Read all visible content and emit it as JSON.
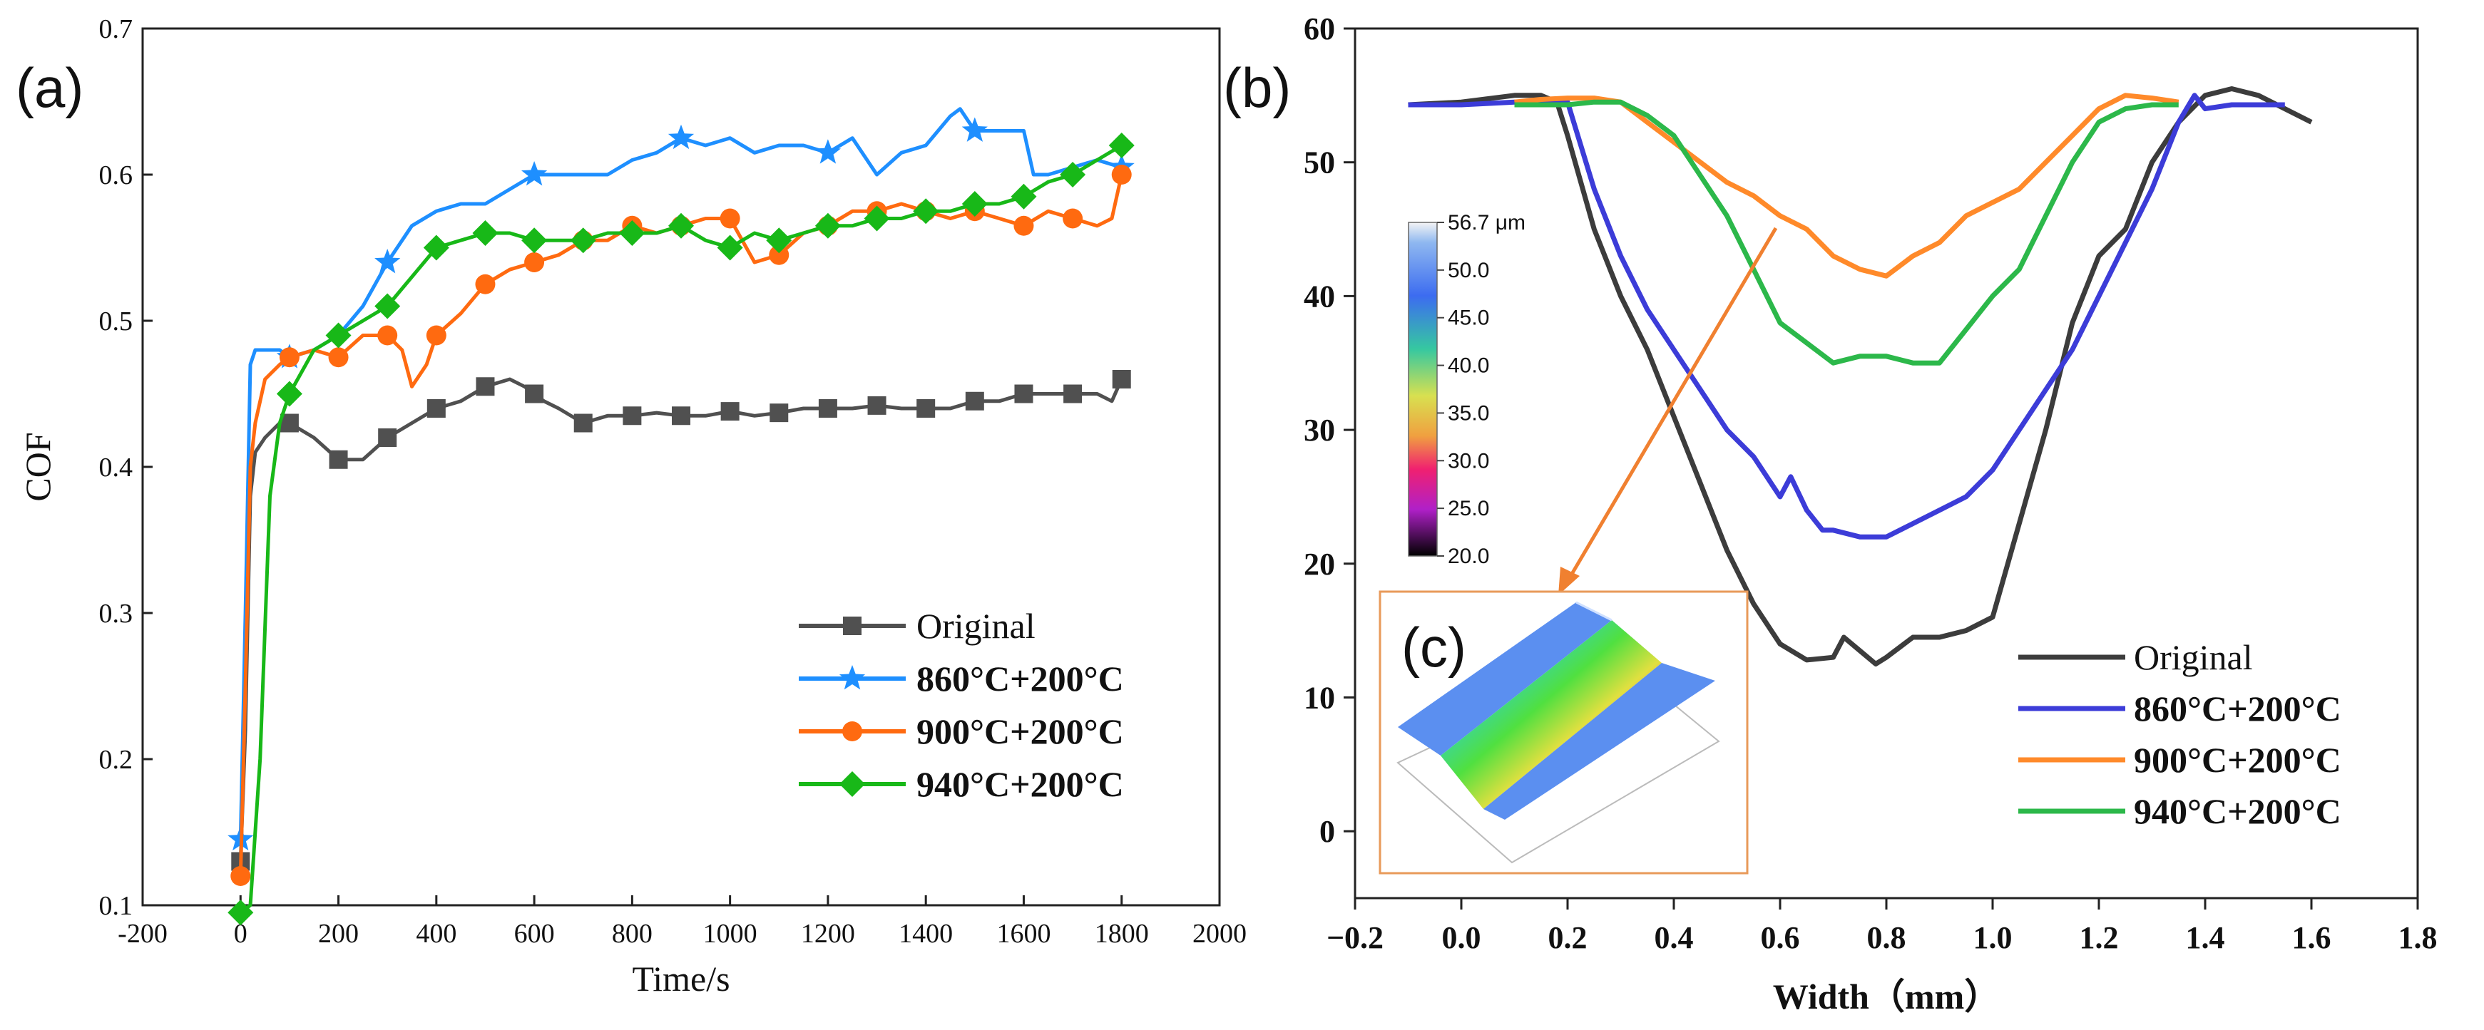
{
  "colors": {
    "original_a": "#505050",
    "series860_a": "#1e8fff",
    "series900_a": "#ff6a10",
    "series940_a": "#18b818",
    "original_b": "#3c3c3c",
    "series860_b": "#3c3cd8",
    "series900_b": "#ff8a2a",
    "series940_b": "#2cb84a",
    "arrow": "#f08030",
    "inset_border": "#e89a5a"
  },
  "chart_data": [
    {
      "panel": "(a)",
      "type": "line",
      "title": "",
      "xlabel": "Time/s",
      "ylabel": "COF",
      "xlim": [
        -200,
        2000
      ],
      "ylim": [
        0.1,
        0.7
      ],
      "xticks": [
        -200,
        0,
        200,
        400,
        600,
        800,
        1000,
        1200,
        1400,
        1600,
        1800,
        2000
      ],
      "xtick_labels": [
        "-200",
        "0",
        "200",
        "400",
        "600",
        "800",
        "1000",
        "1200",
        "1400",
        "1600",
        "1800",
        "2000"
      ],
      "yticks": [
        0.1,
        0.2,
        0.3,
        0.4,
        0.5,
        0.6,
        0.7
      ],
      "ytick_labels": [
        "0.1",
        "0.2",
        "0.3",
        "0.4",
        "0.5",
        "0.6",
        "0.7"
      ],
      "legend_position": "lower-right",
      "series": [
        {
          "name": "Original",
          "marker": "square",
          "x": [
            0,
            10,
            20,
            30,
            50,
            80,
            100,
            150,
            200,
            250,
            300,
            350,
            400,
            450,
            500,
            550,
            580,
            600,
            620,
            650,
            700,
            750,
            800,
            850,
            900,
            950,
            1000,
            1050,
            1100,
            1150,
            1200,
            1250,
            1300,
            1350,
            1400,
            1450,
            1500,
            1550,
            1600,
            1650,
            1700,
            1750,
            1780,
            1800
          ],
          "y": [
            0.13,
            0.22,
            0.38,
            0.41,
            0.42,
            0.43,
            0.43,
            0.42,
            0.405,
            0.405,
            0.42,
            0.43,
            0.44,
            0.445,
            0.455,
            0.46,
            0.455,
            0.45,
            0.445,
            0.44,
            0.43,
            0.435,
            0.435,
            0.437,
            0.435,
            0.435,
            0.438,
            0.435,
            0.437,
            0.44,
            0.44,
            0.44,
            0.442,
            0.44,
            0.44,
            0.44,
            0.445,
            0.445,
            0.45,
            0.45,
            0.45,
            0.45,
            0.445,
            0.46
          ],
          "marker_x": [
            0,
            100,
            200,
            300,
            400,
            500,
            600,
            700,
            800,
            900,
            1000,
            1100,
            1200,
            1300,
            1400,
            1500,
            1600,
            1700,
            1800
          ],
          "marker_y": [
            0.13,
            0.43,
            0.405,
            0.42,
            0.44,
            0.455,
            0.45,
            0.43,
            0.435,
            0.435,
            0.438,
            0.437,
            0.44,
            0.442,
            0.44,
            0.445,
            0.45,
            0.45,
            0.46
          ]
        },
        {
          "name": "860°C+200°C",
          "marker": "star",
          "x": [
            0,
            10,
            20,
            30,
            50,
            80,
            100,
            150,
            200,
            250,
            300,
            350,
            400,
            450,
            500,
            550,
            600,
            650,
            700,
            750,
            800,
            850,
            900,
            950,
            1000,
            1050,
            1100,
            1150,
            1200,
            1250,
            1300,
            1350,
            1400,
            1450,
            1470,
            1500,
            1550,
            1600,
            1620,
            1650,
            1700,
            1750,
            1800
          ],
          "y": [
            0.145,
            0.3,
            0.47,
            0.48,
            0.48,
            0.48,
            0.475,
            0.48,
            0.49,
            0.51,
            0.54,
            0.565,
            0.575,
            0.58,
            0.58,
            0.59,
            0.6,
            0.6,
            0.6,
            0.6,
            0.61,
            0.615,
            0.625,
            0.62,
            0.625,
            0.615,
            0.62,
            0.62,
            0.615,
            0.625,
            0.6,
            0.615,
            0.62,
            0.64,
            0.645,
            0.63,
            0.63,
            0.63,
            0.6,
            0.6,
            0.605,
            0.61,
            0.605
          ],
          "marker_x": [
            0,
            100,
            300,
            600,
            900,
            1200,
            1500,
            1800
          ],
          "marker_y": [
            0.145,
            0.475,
            0.54,
            0.6,
            0.625,
            0.615,
            0.63,
            0.605
          ]
        },
        {
          "name": "900°C+200°C",
          "marker": "circle",
          "x": [
            0,
            10,
            20,
            30,
            50,
            80,
            100,
            150,
            200,
            250,
            300,
            330,
            350,
            380,
            400,
            450,
            500,
            550,
            600,
            650,
            700,
            750,
            800,
            850,
            900,
            950,
            1000,
            1050,
            1100,
            1150,
            1200,
            1250,
            1300,
            1350,
            1400,
            1450,
            1500,
            1550,
            1600,
            1650,
            1700,
            1750,
            1780,
            1800
          ],
          "y": [
            0.12,
            0.25,
            0.4,
            0.43,
            0.46,
            0.47,
            0.475,
            0.48,
            0.475,
            0.49,
            0.49,
            0.48,
            0.455,
            0.47,
            0.49,
            0.505,
            0.525,
            0.535,
            0.54,
            0.545,
            0.555,
            0.555,
            0.565,
            0.56,
            0.565,
            0.57,
            0.57,
            0.54,
            0.545,
            0.56,
            0.565,
            0.575,
            0.575,
            0.58,
            0.575,
            0.57,
            0.575,
            0.57,
            0.565,
            0.575,
            0.57,
            0.565,
            0.57,
            0.6
          ],
          "marker_x": [
            0,
            100,
            200,
            300,
            400,
            500,
            600,
            700,
            800,
            900,
            1000,
            1100,
            1200,
            1300,
            1400,
            1500,
            1600,
            1700,
            1800
          ],
          "marker_y": [
            0.12,
            0.475,
            0.475,
            0.49,
            0.49,
            0.525,
            0.54,
            0.555,
            0.565,
            0.565,
            0.57,
            0.545,
            0.565,
            0.575,
            0.575,
            0.575,
            0.565,
            0.57,
            0.6
          ]
        },
        {
          "name": "940°C+200°C",
          "marker": "diamond",
          "x": [
            0,
            20,
            40,
            60,
            80,
            100,
            150,
            200,
            250,
            300,
            350,
            400,
            450,
            500,
            550,
            600,
            650,
            700,
            750,
            800,
            850,
            900,
            950,
            1000,
            1050,
            1100,
            1150,
            1200,
            1250,
            1300,
            1350,
            1400,
            1450,
            1500,
            1550,
            1600,
            1650,
            1700,
            1750,
            1800
          ],
          "y": [
            0.095,
            0.1,
            0.2,
            0.38,
            0.43,
            0.45,
            0.48,
            0.49,
            0.5,
            0.51,
            0.53,
            0.55,
            0.555,
            0.56,
            0.56,
            0.555,
            0.555,
            0.555,
            0.56,
            0.56,
            0.56,
            0.565,
            0.555,
            0.55,
            0.56,
            0.555,
            0.56,
            0.565,
            0.565,
            0.57,
            0.57,
            0.575,
            0.575,
            0.58,
            0.58,
            0.585,
            0.595,
            0.6,
            0.61,
            0.62
          ],
          "marker_x": [
            0,
            100,
            200,
            300,
            400,
            500,
            600,
            700,
            800,
            900,
            1000,
            1100,
            1200,
            1300,
            1400,
            1500,
            1600,
            1700,
            1800
          ],
          "marker_y": [
            0.095,
            0.45,
            0.49,
            0.51,
            0.55,
            0.56,
            0.555,
            0.555,
            0.56,
            0.565,
            0.55,
            0.555,
            0.565,
            0.57,
            0.575,
            0.58,
            0.585,
            0.6,
            0.62
          ]
        }
      ]
    },
    {
      "panel": "(b)",
      "type": "line",
      "title": "",
      "xlabel": "Width（mm）",
      "ylabel": "",
      "xlim": [
        -0.2,
        1.8
      ],
      "ylim": [
        -5,
        60
      ],
      "xticks": [
        -0.2,
        0.0,
        0.2,
        0.4,
        0.6,
        0.8,
        1.0,
        1.2,
        1.4,
        1.6,
        1.8
      ],
      "xtick_labels": [
        "−0.2",
        "0.0",
        "0.2",
        "0.4",
        "0.6",
        "0.8",
        "1.0",
        "1.2",
        "1.4",
        "1.6",
        "1.8"
      ],
      "yticks": [
        0,
        10,
        20,
        30,
        40,
        50,
        60
      ],
      "ytick_labels": [
        "0",
        "10",
        "20",
        "30",
        "40",
        "50",
        "60"
      ],
      "legend_position": "lower-right",
      "series": [
        {
          "name": "Original",
          "x": [
            -0.1,
            0.0,
            0.1,
            0.15,
            0.18,
            0.2,
            0.25,
            0.3,
            0.35,
            0.4,
            0.45,
            0.5,
            0.55,
            0.6,
            0.65,
            0.7,
            0.72,
            0.75,
            0.78,
            0.8,
            0.85,
            0.9,
            0.95,
            1.0,
            1.05,
            1.1,
            1.15,
            1.2,
            1.25,
            1.3,
            1.35,
            1.4,
            1.45,
            1.5,
            1.55,
            1.6
          ],
          "y": [
            54.3,
            54.5,
            55.0,
            55.0,
            54.5,
            52.0,
            45.0,
            40.0,
            36.0,
            31.0,
            26.0,
            21.0,
            17.0,
            14.0,
            12.8,
            13.0,
            14.5,
            13.5,
            12.5,
            13.0,
            14.5,
            14.5,
            15.0,
            16.0,
            23.0,
            30.0,
            38.0,
            43.0,
            45.0,
            50.0,
            53.0,
            55.0,
            55.5,
            55.0,
            54.0,
            53.0
          ]
        },
        {
          "name": "860°C+200°C",
          "x": [
            -0.1,
            0.0,
            0.1,
            0.2,
            0.25,
            0.3,
            0.35,
            0.4,
            0.45,
            0.5,
            0.55,
            0.6,
            0.62,
            0.65,
            0.68,
            0.7,
            0.75,
            0.8,
            0.85,
            0.9,
            0.95,
            1.0,
            1.05,
            1.1,
            1.15,
            1.2,
            1.25,
            1.3,
            1.35,
            1.38,
            1.4,
            1.45,
            1.5,
            1.55
          ],
          "y": [
            54.3,
            54.3,
            54.5,
            54.5,
            48.0,
            43.0,
            39.0,
            36.0,
            33.0,
            30.0,
            28.0,
            25.0,
            26.5,
            24.0,
            22.5,
            22.5,
            22.0,
            22.0,
            23.0,
            24.0,
            25.0,
            27.0,
            30.0,
            33.0,
            36.0,
            40.0,
            44.0,
            48.0,
            53.0,
            55.0,
            54.0,
            54.3,
            54.3,
            54.3
          ]
        },
        {
          "name": "900°C+200°C",
          "x": [
            0.1,
            0.15,
            0.2,
            0.25,
            0.3,
            0.35,
            0.4,
            0.45,
            0.5,
            0.55,
            0.6,
            0.65,
            0.7,
            0.75,
            0.8,
            0.85,
            0.9,
            0.95,
            1.0,
            1.05,
            1.1,
            1.15,
            1.2,
            1.25,
            1.3,
            1.35
          ],
          "y": [
            54.5,
            54.7,
            54.8,
            54.8,
            54.5,
            53.0,
            51.5,
            50.0,
            48.5,
            47.5,
            46.0,
            45.0,
            43.0,
            42.0,
            41.5,
            43.0,
            44.0,
            46.0,
            47.0,
            48.0,
            50.0,
            52.0,
            54.0,
            55.0,
            54.8,
            54.5
          ]
        },
        {
          "name": "940°C+200°C",
          "x": [
            0.1,
            0.15,
            0.2,
            0.25,
            0.3,
            0.35,
            0.4,
            0.45,
            0.5,
            0.55,
            0.6,
            0.65,
            0.7,
            0.75,
            0.8,
            0.85,
            0.9,
            0.95,
            1.0,
            1.05,
            1.1,
            1.15,
            1.2,
            1.25,
            1.3,
            1.35
          ],
          "y": [
            54.3,
            54.3,
            54.3,
            54.5,
            54.5,
            53.5,
            52.0,
            49.0,
            46.0,
            42.0,
            38.0,
            36.5,
            35.0,
            35.5,
            35.5,
            35.0,
            35.0,
            37.5,
            40.0,
            42.0,
            46.0,
            50.0,
            53.0,
            54.0,
            54.3,
            54.3
          ]
        }
      ],
      "colorbar": {
        "unit_label": "56.7 μm",
        "labels": [
          "56.7 μm",
          "50.0",
          "45.0",
          "40.0",
          "35.0",
          "30.0",
          "25.0",
          "20.0"
        ]
      },
      "inset": {
        "label": "(c)",
        "description_label": ""
      }
    }
  ],
  "panel_labels": {
    "a": "(a)",
    "b": "(b)",
    "c": "(c)"
  }
}
